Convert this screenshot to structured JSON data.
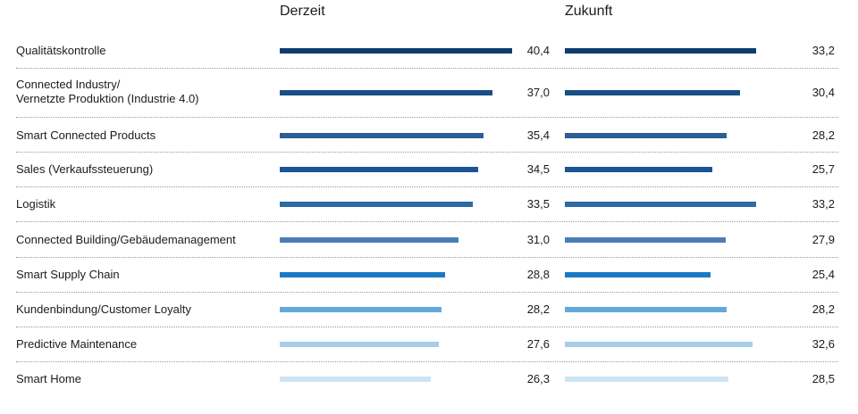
{
  "chart_data": {
    "type": "bar",
    "columns": [
      "Derzeit",
      "Zukunft"
    ],
    "categories": [
      "Qualitätskontrolle",
      "Connected Industry/\nVernetzte Produktion (Industrie 4.0)",
      "Smart Connected Products",
      "Sales (Verkaufssteuerung)",
      "Logistik",
      "Connected Building/Gebäudemanagement",
      "Smart Supply Chain",
      "Kundenbindung/Customer Loyalty",
      "Predictive Maintenance",
      "Smart Home"
    ],
    "series": [
      {
        "name": "Derzeit",
        "values": [
          40.4,
          37.0,
          35.4,
          34.5,
          33.5,
          31.0,
          28.8,
          28.2,
          27.6,
          26.3
        ],
        "labels": [
          "40,4",
          "37,0",
          "35,4",
          "34,5",
          "33,5",
          "31,0",
          "28,8",
          "28,2",
          "27,6",
          "26,3"
        ]
      },
      {
        "name": "Zukunft",
        "values": [
          33.2,
          30.4,
          28.2,
          25.7,
          33.2,
          27.9,
          25.4,
          28.2,
          32.6,
          28.5
        ],
        "labels": [
          "33,2",
          "30,4",
          "28,2",
          "25,7",
          "33,2",
          "27,9",
          "25,4",
          "28,2",
          "32,6",
          "28,5"
        ]
      }
    ],
    "bar_colors": [
      "#0e3d6f",
      "#1a4f85",
      "#2b5f95",
      "#1a5494",
      "#2e6aa6",
      "#4a7fb5",
      "#1b7ac4",
      "#64a8dc",
      "#a6cde9",
      "#cfe4f3"
    ],
    "max_value": 40.4
  }
}
